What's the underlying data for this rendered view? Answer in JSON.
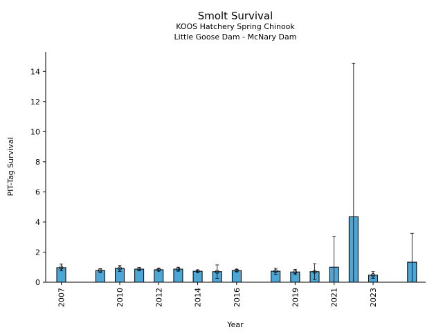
{
  "chart_data": {
    "type": "bar",
    "title": "Smolt Survival",
    "subtitle_lines": [
      "KOOS Hatchery Spring Chinook",
      "Little Goose Dam - McNary Dam"
    ],
    "xlabel": "Year",
    "ylabel": "PIT-Tag Survival",
    "ylim": [
      0,
      15.3
    ],
    "yticks": [
      0,
      2,
      4,
      6,
      8,
      10,
      12,
      14
    ],
    "xlim": [
      2006.2,
      2025.7
    ],
    "xticks": [
      2007,
      2010,
      2012,
      2014,
      2016,
      2019,
      2021,
      2023
    ],
    "bar_color": "#4ca6d6",
    "grid": false,
    "series": [
      {
        "x": [
          2007,
          2009,
          2010,
          2011,
          2012,
          2013,
          2014,
          2015,
          2016,
          2018,
          2019,
          2020,
          2021,
          2022,
          2023,
          2025
        ],
        "values": [
          0.97,
          0.78,
          0.92,
          0.87,
          0.83,
          0.87,
          0.73,
          0.7,
          0.78,
          0.73,
          0.68,
          0.7,
          1.0,
          4.35,
          0.47,
          1.33
        ],
        "err_low": [
          0.75,
          0.65,
          0.72,
          0.75,
          0.75,
          0.73,
          0.65,
          0.25,
          0.7,
          0.52,
          0.5,
          0.18,
          0.0,
          0.0,
          0.25,
          0.0
        ],
        "err_high": [
          1.2,
          0.9,
          1.12,
          0.98,
          0.9,
          1.0,
          0.8,
          1.15,
          0.85,
          0.92,
          0.85,
          1.22,
          3.05,
          14.55,
          0.7,
          3.25
        ],
        "has_marker": [
          true,
          true,
          true,
          true,
          true,
          true,
          true,
          true,
          true,
          true,
          true,
          true,
          false,
          false,
          true,
          false
        ]
      }
    ]
  }
}
